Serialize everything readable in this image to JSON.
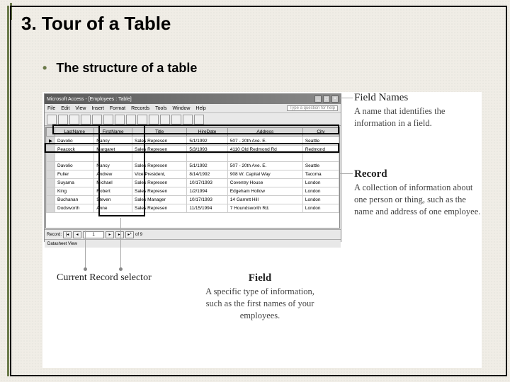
{
  "slide": {
    "title": "3. Tour of a Table",
    "bullet": "The structure of a table"
  },
  "window": {
    "title": "Microsoft Access - [Employees : Table]",
    "menu": [
      "File",
      "Edit",
      "View",
      "Insert",
      "Format",
      "Records",
      "Tools",
      "Window",
      "Help"
    ],
    "help_placeholder": "Type a question for help",
    "columns": [
      "LastName",
      "FirstName",
      "Title",
      "HireDate",
      "Address",
      "City"
    ],
    "rows": [
      [
        "Davolio",
        "Nancy",
        "Sales Represen",
        "5/1/1992",
        "507 - 20th Ave. E.",
        "Seattle"
      ],
      [
        "Peacock",
        "Margaret",
        "Sales Represen",
        "5/3/1993",
        "4110 Old Redmond Rd",
        "Redmond"
      ],
      [
        "",
        "",
        "",
        "",
        "",
        ""
      ],
      [
        "Davolio",
        "Nancy",
        "Sales Represen",
        "5/1/1992",
        "507 - 20th Ave. E.",
        "Seattle"
      ],
      [
        "Fuller",
        "Andrew",
        "Vice President,",
        "8/14/1992",
        "908 W. Capital Way",
        "Tacoma"
      ],
      [
        "Suyama",
        "Michael",
        "Sales Represen",
        "10/17/1993",
        "Coventry House",
        "London"
      ],
      [
        "King",
        "Robert",
        "Sales Represen",
        "1/2/1994",
        "Edgeham Hollow",
        "London"
      ],
      [
        "Buchanan",
        "Steven",
        "Sales Manager",
        "10/17/1993",
        "14 Garrett Hill",
        "London"
      ],
      [
        "Dodsworth",
        "Anne",
        "Sales Represen",
        "11/15/1994",
        "7 Houndsworth Rd.",
        "London"
      ]
    ],
    "record_label": "Record:",
    "record_current": "1",
    "record_total": "of 9",
    "status": "Datasheet View"
  },
  "callouts": {
    "fieldnames": {
      "title": "Field Names",
      "body": "A name that identifies the information in a field."
    },
    "record": {
      "title": "Record",
      "body": "A collection of information about one person or thing, such as the name and address of one employee."
    },
    "current": {
      "title": "Current Record selector"
    },
    "field": {
      "title": "Field",
      "body": "A specific type of information, such as the first names of your employees."
    }
  }
}
